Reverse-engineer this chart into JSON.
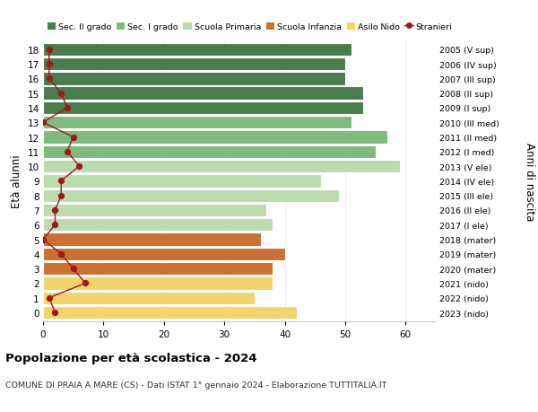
{
  "ages": [
    18,
    17,
    16,
    15,
    14,
    13,
    12,
    11,
    10,
    9,
    8,
    7,
    6,
    5,
    4,
    3,
    2,
    1,
    0
  ],
  "years": [
    "2005 (V sup)",
    "2006 (IV sup)",
    "2007 (III sup)",
    "2008 (II sup)",
    "2009 (I sup)",
    "2010 (III med)",
    "2011 (II med)",
    "2012 (I med)",
    "2013 (V ele)",
    "2014 (IV ele)",
    "2015 (III ele)",
    "2016 (II ele)",
    "2017 (I ele)",
    "2018 (mater)",
    "2019 (mater)",
    "2020 (mater)",
    "2021 (nido)",
    "2022 (nido)",
    "2023 (nido)"
  ],
  "bar_values": [
    51,
    50,
    50,
    53,
    53,
    51,
    57,
    55,
    59,
    46,
    49,
    37,
    38,
    36,
    40,
    38,
    38,
    35,
    42
  ],
  "bar_colors": [
    "#4a7c4e",
    "#4a7c4e",
    "#4a7c4e",
    "#4a7c4e",
    "#4a7c4e",
    "#7fba7f",
    "#7fba7f",
    "#7fba7f",
    "#bcdcb0",
    "#bcdcb0",
    "#bcdcb0",
    "#bcdcb0",
    "#bcdcb0",
    "#cc7033",
    "#cc7033",
    "#cc7033",
    "#f2d46a",
    "#f2d46a",
    "#f2d46a"
  ],
  "stranieri_values": [
    1,
    1,
    1,
    3,
    4,
    0,
    5,
    4,
    6,
    3,
    3,
    2,
    2,
    0,
    3,
    5,
    7,
    1,
    2
  ],
  "stranieri_color": "#9e1a1a",
  "legend_labels": [
    "Sec. II grado",
    "Sec. I grado",
    "Scuola Primaria",
    "Scuola Infanzia",
    "Asilo Nido",
    "Stranieri"
  ],
  "legend_colors": [
    "#4a7c4e",
    "#7fba7f",
    "#bcdcb0",
    "#cc7033",
    "#f2d46a",
    "#9e1a1a"
  ],
  "ylabel_text": "Età alunni",
  "right_label": "Anni di nascita",
  "title": "Popolazione per età scolastica - 2024",
  "subtitle": "COMUNE DI PRAIA A MARE (CS) - Dati ISTAT 1° gennaio 2024 - Elaborazione TUTTITALIA.IT",
  "xlim": [
    0,
    65
  ],
  "xticks": [
    0,
    10,
    20,
    30,
    40,
    50,
    60
  ],
  "plot_bg": "#ffffff",
  "fig_bg": "#ffffff",
  "grid_color": "#dddddd"
}
